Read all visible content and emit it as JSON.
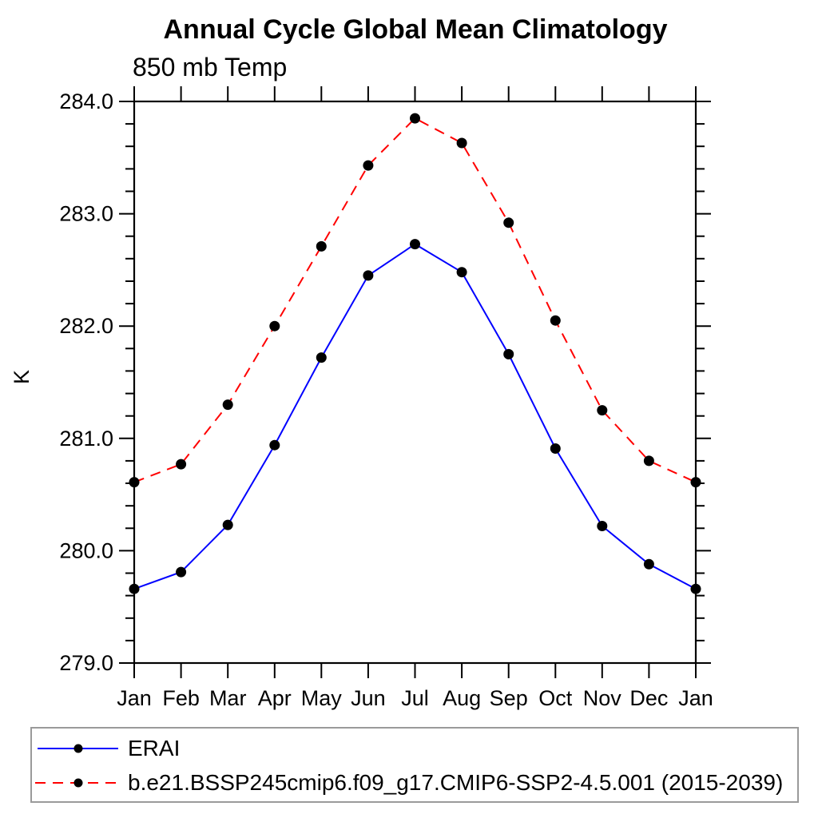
{
  "chart_data": {
    "type": "line",
    "title": "Annual Cycle Global Mean Climatology",
    "subtitle": "850 mb Temp",
    "xlabel": "",
    "ylabel": "K",
    "categories": [
      "Jan",
      "Feb",
      "Mar",
      "Apr",
      "May",
      "Jun",
      "Jul",
      "Aug",
      "Sep",
      "Oct",
      "Nov",
      "Dec",
      "Jan"
    ],
    "series": [
      {
        "name": "ERAI",
        "color": "#0000ff",
        "line_style": "solid",
        "marker": "filled-circle",
        "marker_color": "#000000",
        "values": [
          279.66,
          279.81,
          280.23,
          280.94,
          281.72,
          282.45,
          282.73,
          282.48,
          281.75,
          280.91,
          280.22,
          279.88,
          279.66
        ]
      },
      {
        "name": "b.e21.BSSP245cmip6.f09_g17.CMIP6-SSP2-4.5.001 (2015-2039)",
        "color": "#ff0000",
        "line_style": "dashed",
        "marker": "filled-circle",
        "marker_color": "#000000",
        "values": [
          280.61,
          280.77,
          281.3,
          282.0,
          282.71,
          283.43,
          283.85,
          283.63,
          282.92,
          282.05,
          281.25,
          280.8,
          280.61
        ]
      }
    ],
    "ylim": [
      279.0,
      284.0
    ],
    "ytick_interval": 1.0,
    "ytick_minor_interval": 0.2,
    "ytick_labels": [
      "279.0",
      "280.0",
      "281.0",
      "282.0",
      "283.0",
      "284.0"
    ],
    "grid": false,
    "legend_position": "bottom",
    "axis_color": "#000000"
  }
}
